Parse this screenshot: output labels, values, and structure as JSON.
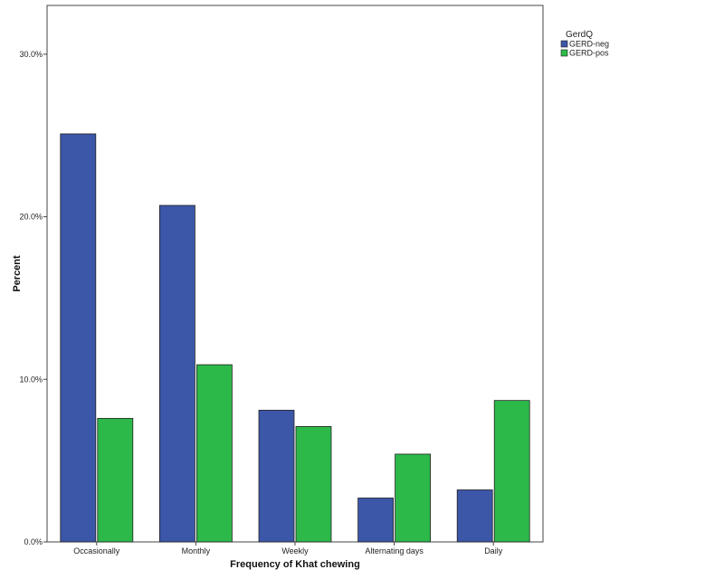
{
  "chart_data": {
    "type": "bar",
    "title": "",
    "xlabel": "Frequency of Khat chewing",
    "ylabel": "Percent",
    "categories": [
      "Occasionally",
      "Monthly",
      "Weekly",
      "Alternating days",
      "Daily"
    ],
    "series": [
      {
        "name": "GERD-neg",
        "color": "#3c56a8",
        "values": [
          25.1,
          20.7,
          8.1,
          2.7,
          3.2
        ]
      },
      {
        "name": "GERD-pos",
        "color": "#2db84a",
        "values": [
          7.6,
          10.9,
          7.1,
          5.4,
          8.7
        ]
      }
    ],
    "ylim": [
      0,
      33
    ],
    "yticks": [
      {
        "value": 0,
        "label": "0.0%"
      },
      {
        "value": 10,
        "label": "10.0%"
      },
      {
        "value": 20,
        "label": "20.0%"
      },
      {
        "value": 30,
        "label": "30.0%"
      }
    ],
    "legend": {
      "title": "GerdQ",
      "placement": "top-right"
    },
    "grid": false
  }
}
